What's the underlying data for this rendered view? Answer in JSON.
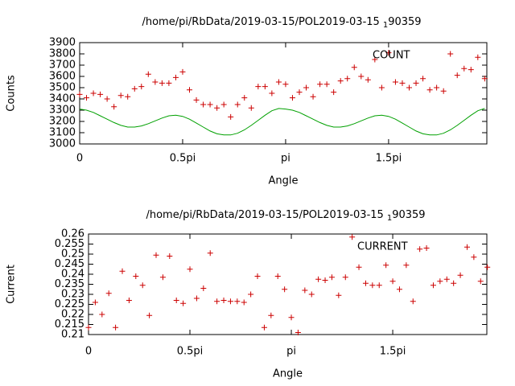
{
  "chart_data": [
    {
      "type": "scatter",
      "title": "/home/pi/RbData/2019-03-15/POL2019-03-15",
      "title_subscript": "1",
      "title_suffix": "90359",
      "xlabel": "Angle",
      "ylabel": "Counts",
      "x": [
        0,
        0.0333,
        0.0667,
        0.1,
        0.1333,
        0.1667,
        0.2,
        0.2333,
        0.2667,
        0.3,
        0.3333,
        0.3667,
        0.4,
        0.4333,
        0.4667,
        0.5,
        0.5333,
        0.5667,
        0.6,
        0.6333,
        0.6667,
        0.7,
        0.7333,
        0.7667,
        0.8,
        0.8333,
        0.8667,
        0.9,
        0.9333,
        0.9667,
        1,
        1.0333,
        1.0667,
        1.1,
        1.1333,
        1.1667,
        1.2,
        1.2333,
        1.2667,
        1.3,
        1.3333,
        1.3667,
        1.4,
        1.4333,
        1.4667,
        1.5,
        1.5333,
        1.5667,
        1.6,
        1.6333,
        1.6667,
        1.7,
        1.7333,
        1.7667,
        1.8,
        1.8333,
        1.8667,
        1.9,
        1.9333,
        1.9667
      ],
      "series": [
        {
          "name": "COUNT",
          "mode": "points",
          "color": "#cc0000",
          "values": [
            3440,
            3410,
            3450,
            3440,
            3400,
            3330,
            3430,
            3420,
            3490,
            3510,
            3620,
            3550,
            3540,
            3540,
            3590,
            3640,
            3480,
            3390,
            3350,
            3350,
            3320,
            3350,
            3240,
            3350,
            3410,
            3320,
            3510,
            3510,
            3450,
            3550,
            3530,
            3410,
            3460,
            3500,
            3420,
            3530,
            3530,
            3460,
            3560,
            3580,
            3680,
            3600,
            3570,
            3750,
            3500,
            3810,
            3550,
            3540,
            3500,
            3540,
            3580,
            3480,
            3500,
            3470,
            3800,
            3610,
            3670,
            3660,
            3770,
            3580
          ]
        },
        {
          "mode": "line",
          "color": "#00a000",
          "values": [
            3310,
            3300,
            3280,
            3250,
            3220,
            3190,
            3165,
            3150,
            3150,
            3160,
            3180,
            3205,
            3230,
            3250,
            3255,
            3245,
            3220,
            3185,
            3150,
            3115,
            3090,
            3080,
            3080,
            3095,
            3125,
            3165,
            3210,
            3255,
            3295,
            3315,
            3310,
            3300,
            3280,
            3250,
            3220,
            3190,
            3165,
            3150,
            3150,
            3160,
            3180,
            3205,
            3230,
            3250,
            3255,
            3245,
            3220,
            3185,
            3150,
            3115,
            3090,
            3080,
            3080,
            3095,
            3125,
            3165,
            3210,
            3255,
            3295,
            3315
          ]
        }
      ],
      "xlim": [
        0,
        1.977
      ],
      "xticks": [
        0,
        {
          "value": 0.5,
          "label": "0.5pi"
        },
        {
          "value": 1,
          "label": "pi"
        },
        {
          "value": 1.5,
          "label": "1.5pi"
        }
      ],
      "ylim": [
        3000,
        3900
      ],
      "yticks": [
        3000,
        3100,
        3200,
        3300,
        3400,
        3500,
        3600,
        3700,
        3800,
        3900
      ]
    },
    {
      "type": "scatter",
      "title": "/home/pi/RbData/2019-03-15/POL2019-03-15",
      "title_subscript": "1",
      "title_suffix": "90359",
      "xlabel": "Angle",
      "ylabel": "Current",
      "x": [
        0,
        0.0333,
        0.0667,
        0.1,
        0.1333,
        0.1667,
        0.2,
        0.2333,
        0.2667,
        0.3,
        0.3333,
        0.3667,
        0.4,
        0.4333,
        0.4667,
        0.5,
        0.5333,
        0.5667,
        0.6,
        0.6333,
        0.6667,
        0.7,
        0.7333,
        0.7667,
        0.8,
        0.8333,
        0.8667,
        0.9,
        0.9333,
        0.9667,
        1,
        1.0333,
        1.0667,
        1.1,
        1.1333,
        1.1667,
        1.2,
        1.2333,
        1.2667,
        1.3,
        1.3333,
        1.3667,
        1.4,
        1.4333,
        1.4667,
        1.5,
        1.5333,
        1.5667,
        1.6,
        1.6333,
        1.6667,
        1.7,
        1.7333,
        1.7667,
        1.8,
        1.8333,
        1.8667,
        1.9,
        1.9333,
        1.9667
      ],
      "series": [
        {
          "name": "CURRENT",
          "mode": "points",
          "color": "#cc0000",
          "values": [
            0.2135,
            0.226,
            0.22,
            0.2305,
            0.2135,
            0.2415,
            0.227,
            0.239,
            0.2345,
            0.2195,
            0.2495,
            0.2385,
            0.249,
            0.227,
            0.2255,
            0.2425,
            0.228,
            0.233,
            0.2505,
            0.2265,
            0.227,
            0.2265,
            0.2265,
            0.226,
            0.23,
            0.239,
            0.2135,
            0.2195,
            0.239,
            0.2325,
            0.2185,
            0.211,
            0.232,
            0.23,
            0.2375,
            0.237,
            0.2385,
            0.2295,
            0.2385,
            0.2585,
            0.2435,
            0.2355,
            0.2345,
            0.2345,
            0.2445,
            0.2365,
            0.2325,
            0.2445,
            0.2265,
            0.2525,
            0.253,
            0.2345,
            0.2365,
            0.2375,
            0.2355,
            0.2395,
            0.2535,
            0.2485,
            0.2365,
            0.2435
          ]
        }
      ],
      "xlim": [
        0,
        1.964
      ],
      "xticks": [
        0,
        {
          "value": 0.5,
          "label": "0.5pi"
        },
        {
          "value": 1,
          "label": "pi"
        },
        {
          "value": 1.5,
          "label": "1.5pi"
        }
      ],
      "ylim": [
        0.21,
        0.26
      ],
      "yticks": [
        0.21,
        0.215,
        0.22,
        0.225,
        0.23,
        0.235,
        0.24,
        0.245,
        0.25,
        0.255,
        0.26
      ]
    }
  ]
}
